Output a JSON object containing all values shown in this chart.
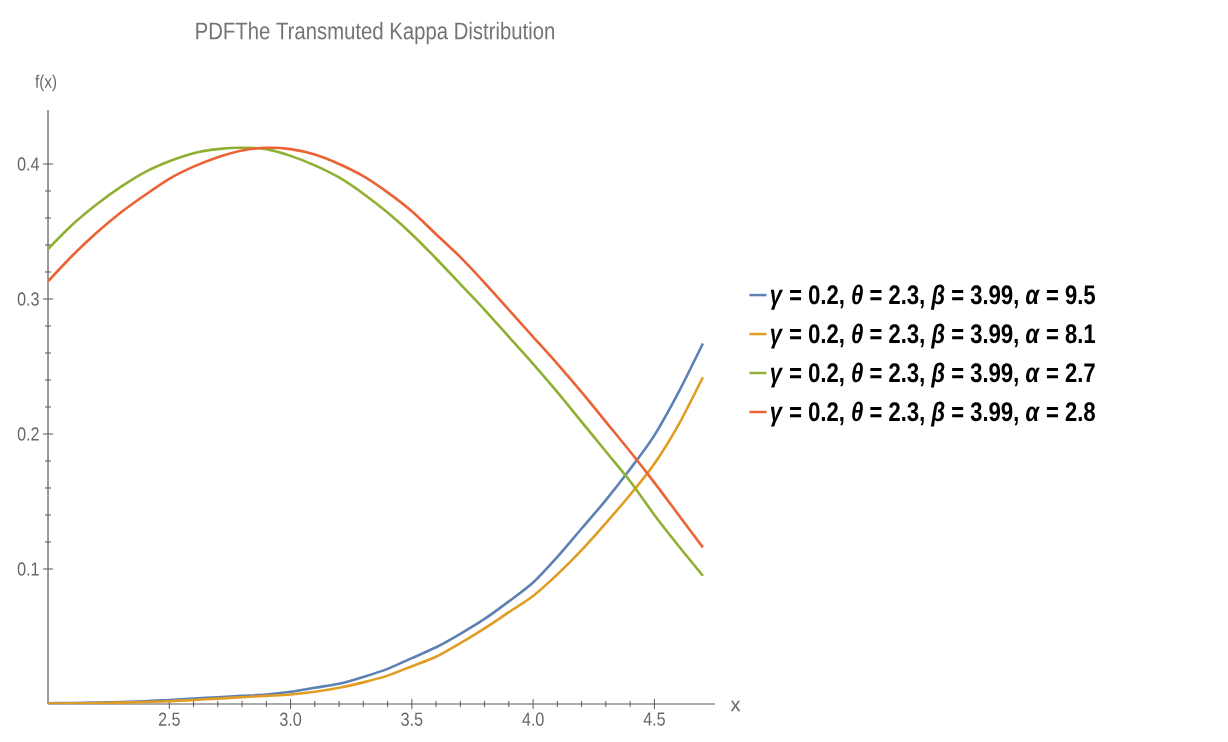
{
  "chart_data": {
    "type": "line",
    "title": "PDFThe Transmuted Kappa Distribution",
    "xlabel": "x",
    "ylabel": "f(x)",
    "x": [
      2.0,
      2.1,
      2.2,
      2.3,
      2.4,
      2.5,
      2.6,
      2.7,
      2.8,
      2.9,
      3.0,
      3.1,
      3.2,
      3.3,
      3.4,
      3.5,
      3.6,
      3.7,
      3.8,
      3.9,
      4.0,
      4.1,
      4.2,
      4.3,
      4.4,
      4.5,
      4.6,
      4.7
    ],
    "series": [
      {
        "name": "*γ* = 0.2, *θ* = 2.3, *β* = 3.99, *α* = 9.5",
        "color": "#5e81b5",
        "values": [
          0.0005,
          0.0007,
          0.001,
          0.0015,
          0.002,
          0.003,
          0.004,
          0.005,
          0.006,
          0.007,
          0.009,
          0.012,
          0.015,
          0.02,
          0.026,
          0.034,
          0.042,
          0.052,
          0.063,
          0.076,
          0.09,
          0.109,
          0.13,
          0.151,
          0.174,
          0.199,
          0.231,
          0.267
        ]
      },
      {
        "name": "*γ* = 0.2, *θ* = 2.3, *β* = 3.99, *α* = 8.1",
        "color": "#e19c24",
        "values": [
          0.0003,
          0.0005,
          0.0007,
          0.001,
          0.0015,
          0.002,
          0.003,
          0.004,
          0.005,
          0.006,
          0.007,
          0.009,
          0.012,
          0.016,
          0.021,
          0.028,
          0.035,
          0.045,
          0.056,
          0.068,
          0.08,
          0.096,
          0.114,
          0.134,
          0.155,
          0.178,
          0.207,
          0.242
        ]
      },
      {
        "name": "*γ* = 0.2, *θ* = 2.3, *β* = 3.99, *α* = 2.7",
        "color": "#8fb032",
        "values": [
          0.337,
          0.355,
          0.37,
          0.383,
          0.394,
          0.402,
          0.408,
          0.411,
          0.412,
          0.411,
          0.406,
          0.399,
          0.39,
          0.378,
          0.364,
          0.348,
          0.33,
          0.311,
          0.292,
          0.272,
          0.252,
          0.231,
          0.209,
          0.187,
          0.165,
          0.14,
          0.117,
          0.095
        ]
      },
      {
        "name": "*γ* = 0.2, *θ* = 2.3, *β* = 3.99, *α* = 2.8",
        "color": "#eb6235",
        "values": [
          0.313,
          0.332,
          0.349,
          0.364,
          0.377,
          0.389,
          0.398,
          0.405,
          0.41,
          0.412,
          0.411,
          0.407,
          0.4,
          0.391,
          0.379,
          0.365,
          0.348,
          0.331,
          0.312,
          0.292,
          0.272,
          0.252,
          0.231,
          0.209,
          0.187,
          0.164,
          0.14,
          0.116
        ]
      }
    ],
    "xlim": [
      2.0,
      4.75
    ],
    "ylim": [
      0,
      0.44
    ],
    "xticks": [
      2.5,
      {
        "value": 3,
        "label": "3.0"
      },
      3.5,
      {
        "value": 4,
        "label": "4.0"
      },
      4.5
    ],
    "yticks": [
      0.1,
      0.2,
      0.3,
      0.4
    ],
    "legend": "right",
    "grid": false,
    "marker": "none",
    "line_style": "solid"
  }
}
